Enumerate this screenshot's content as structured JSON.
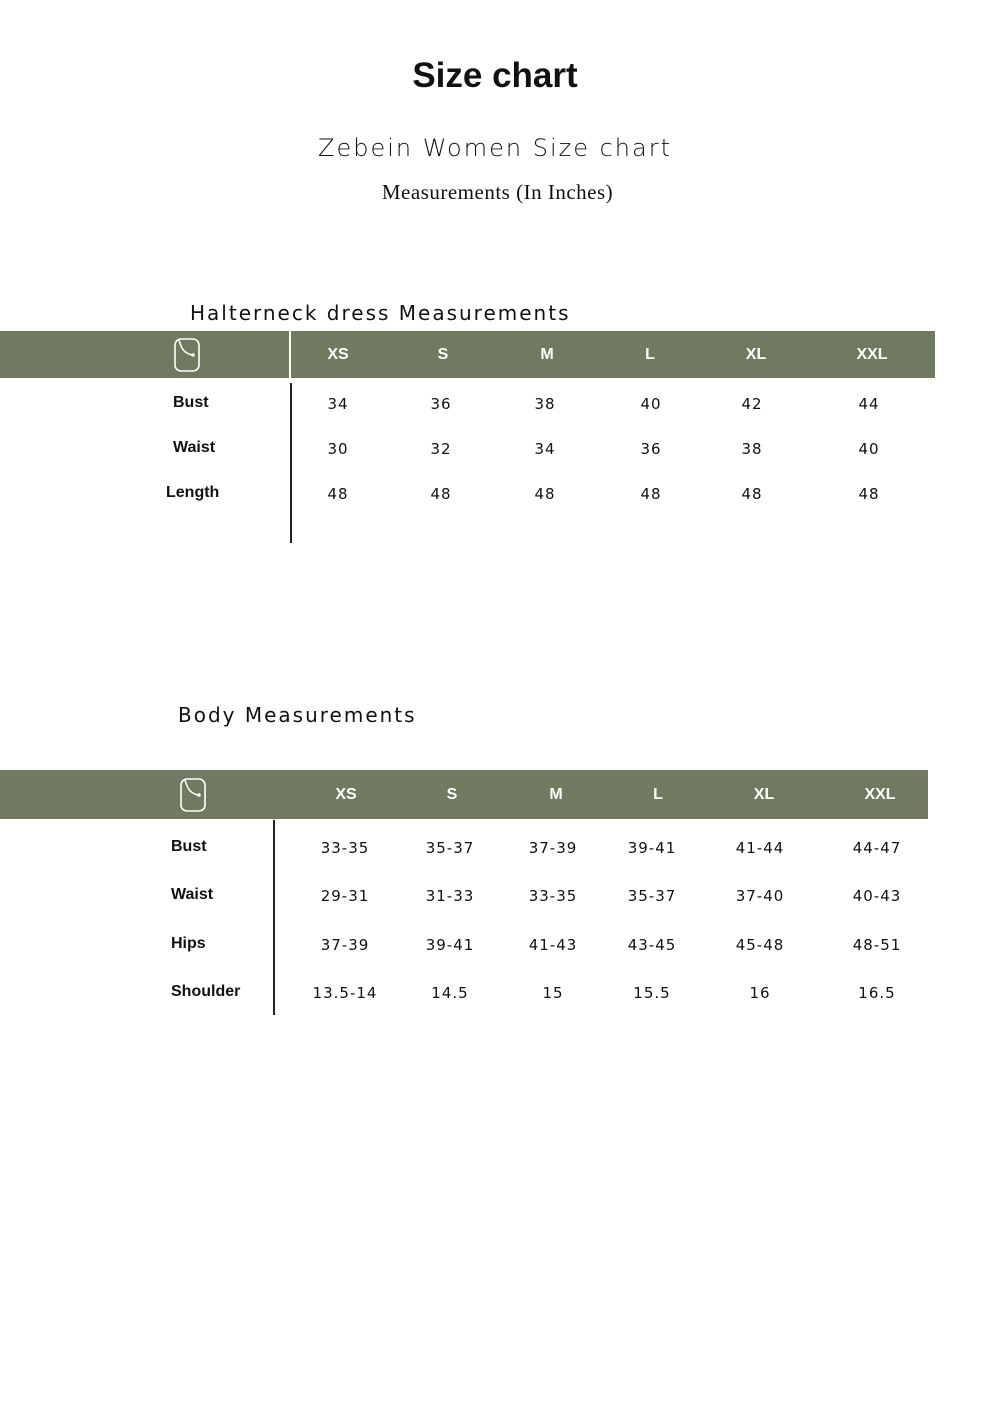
{
  "title": "Size chart",
  "subtitle": "Zebein Women Size chart",
  "units": "Measurements (In Inches)",
  "colors": {
    "header": "#6f7a60"
  },
  "table1": {
    "title": "Halterneck dress  Measurements",
    "icon": "body-measure-icon",
    "sizes": [
      "XS",
      "S",
      "M",
      "L",
      "XL",
      "XXL"
    ],
    "rows": [
      {
        "label": "Bust",
        "values": [
          "34",
          "36",
          "38",
          "40",
          "42",
          "44"
        ]
      },
      {
        "label": "Waist",
        "values": [
          "30",
          "32",
          "34",
          "36",
          "38",
          "40"
        ]
      },
      {
        "label": "Length",
        "values": [
          "48",
          "48",
          "48",
          "48",
          "48",
          "48"
        ]
      }
    ]
  },
  "table2": {
    "title": "Body Measurements",
    "icon": "body-measure-icon",
    "sizes": [
      "XS",
      "S",
      "M",
      "L",
      "XL",
      "XXL"
    ],
    "rows": [
      {
        "label": "Bust",
        "values": [
          "33-35",
          "35-37",
          "37-39",
          "39-41",
          "41-44",
          "44-47"
        ]
      },
      {
        "label": "Waist",
        "values": [
          "29-31",
          "31-33",
          "33-35",
          "35-37",
          "37-40",
          "40-43"
        ]
      },
      {
        "label": "Hips",
        "values": [
          "37-39",
          "39-41",
          "41-43",
          "43-45",
          "45-48",
          "48-51"
        ]
      },
      {
        "label": "Shoulder",
        "values": [
          "13.5-14",
          "14.5",
          "15",
          "15.5",
          "16",
          "16.5"
        ]
      }
    ]
  }
}
